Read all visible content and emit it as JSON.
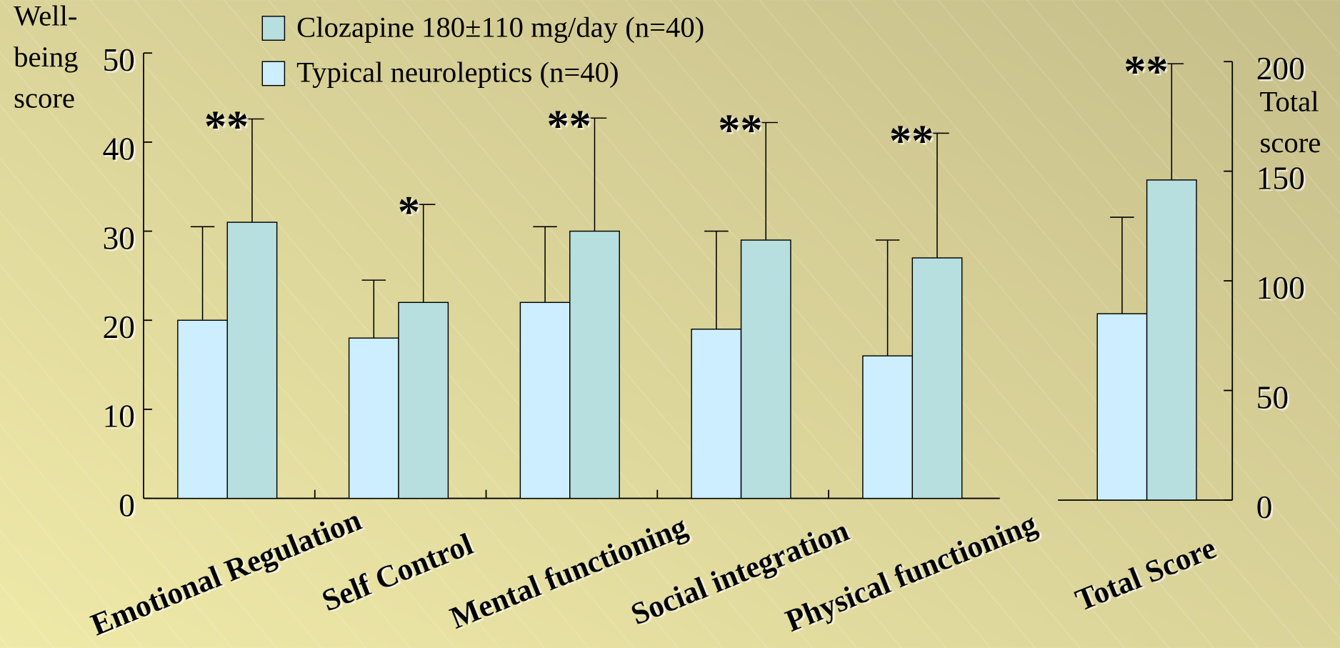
{
  "chart_data": [
    {
      "type": "bar",
      "y_label": [
        "Well-",
        "being",
        "score"
      ],
      "categories": [
        "Emotional Regulation",
        "Self Control",
        "Mental functioning",
        "Social integration",
        "Physical functioning"
      ],
      "series": [
        {
          "name": "Typical neuroleptics (n=40)",
          "color": "#cceeff",
          "values": [
            20,
            18,
            22,
            19,
            16
          ],
          "errors": [
            10.5,
            6.5,
            8.5,
            11,
            13
          ]
        },
        {
          "name": "Clozapine 180±110 mg/day (n=40)",
          "color": "#b8dfe0",
          "values": [
            31,
            22,
            30,
            29,
            27
          ],
          "errors": [
            11.6,
            11,
            12.7,
            13.2,
            14
          ]
        }
      ],
      "annotations": [
        "**",
        "*",
        "**",
        "**",
        "**"
      ],
      "ylim": [
        0,
        50
      ],
      "yticks": [
        0,
        10,
        20,
        30,
        40,
        50
      ]
    },
    {
      "type": "bar",
      "y_label": [
        "Total",
        "score"
      ],
      "categories": [
        "Total Score"
      ],
      "series": [
        {
          "color": "#cceeff",
          "values": [
            85
          ],
          "errors": [
            44
          ]
        },
        {
          "color": "#b8dfe0",
          "values": [
            146
          ],
          "errors": [
            53
          ]
        }
      ],
      "annotations": [
        "**"
      ],
      "ylim": [
        0,
        200
      ],
      "yticks": [
        0,
        50,
        100,
        150,
        200
      ]
    }
  ]
}
